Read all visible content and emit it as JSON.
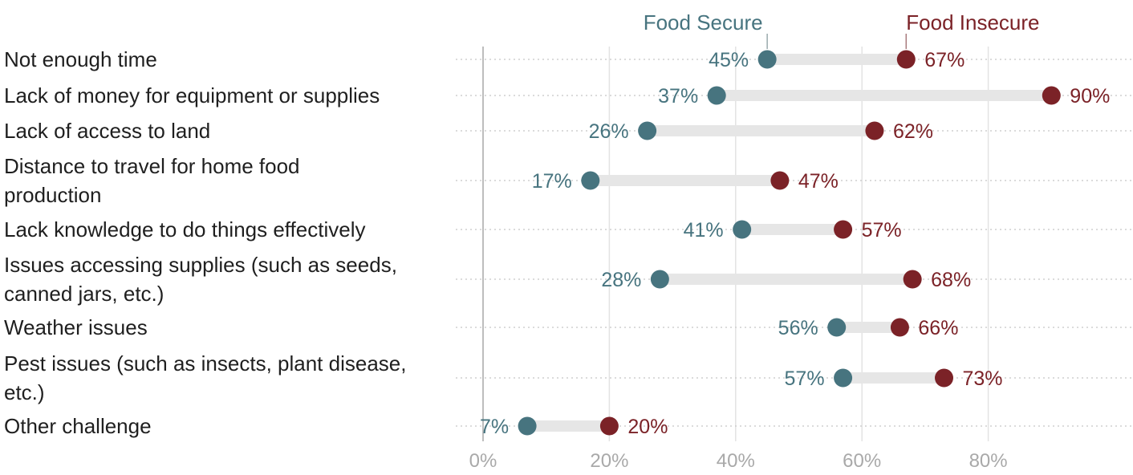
{
  "chart_data": {
    "type": "dumbbell",
    "categories": [
      [
        "Not enough time"
      ],
      [
        "Lack of money for equipment or supplies"
      ],
      [
        "Lack of access to land"
      ],
      [
        "Distance to travel for home food",
        "production"
      ],
      [
        "Lack knowledge to do things effectively"
      ],
      [
        "Issues accessing supplies (such as seeds,",
        "canned jars, etc.)"
      ],
      [
        "Weather issues"
      ],
      [
        "Pest issues (such as insects, plant disease,",
        "etc.)"
      ],
      [
        "Other challenge"
      ]
    ],
    "series": [
      {
        "name": "Food Secure",
        "color": "#47747f",
        "values": [
          45,
          37,
          26,
          17,
          41,
          28,
          56,
          57,
          7
        ],
        "labels": [
          "45%",
          "37%",
          "26%",
          "17%",
          "41%",
          "28%",
          "56%",
          "57%",
          "7%"
        ]
      },
      {
        "name": "Food Insecure",
        "color": "#7b2227",
        "values": [
          67,
          90,
          62,
          47,
          57,
          68,
          66,
          73,
          20
        ],
        "labels": [
          "67%",
          "90%",
          "62%",
          "47%",
          "57%",
          "68%",
          "66%",
          "73%",
          "20%"
        ]
      }
    ],
    "xlim": [
      0,
      100
    ],
    "xticks": [
      0,
      20,
      40,
      60,
      80
    ],
    "xtick_labels": [
      "0%",
      "20%",
      "40%",
      "60%",
      "80%"
    ],
    "legend_placement": "top, labels above the first row's dots",
    "grid": true
  }
}
